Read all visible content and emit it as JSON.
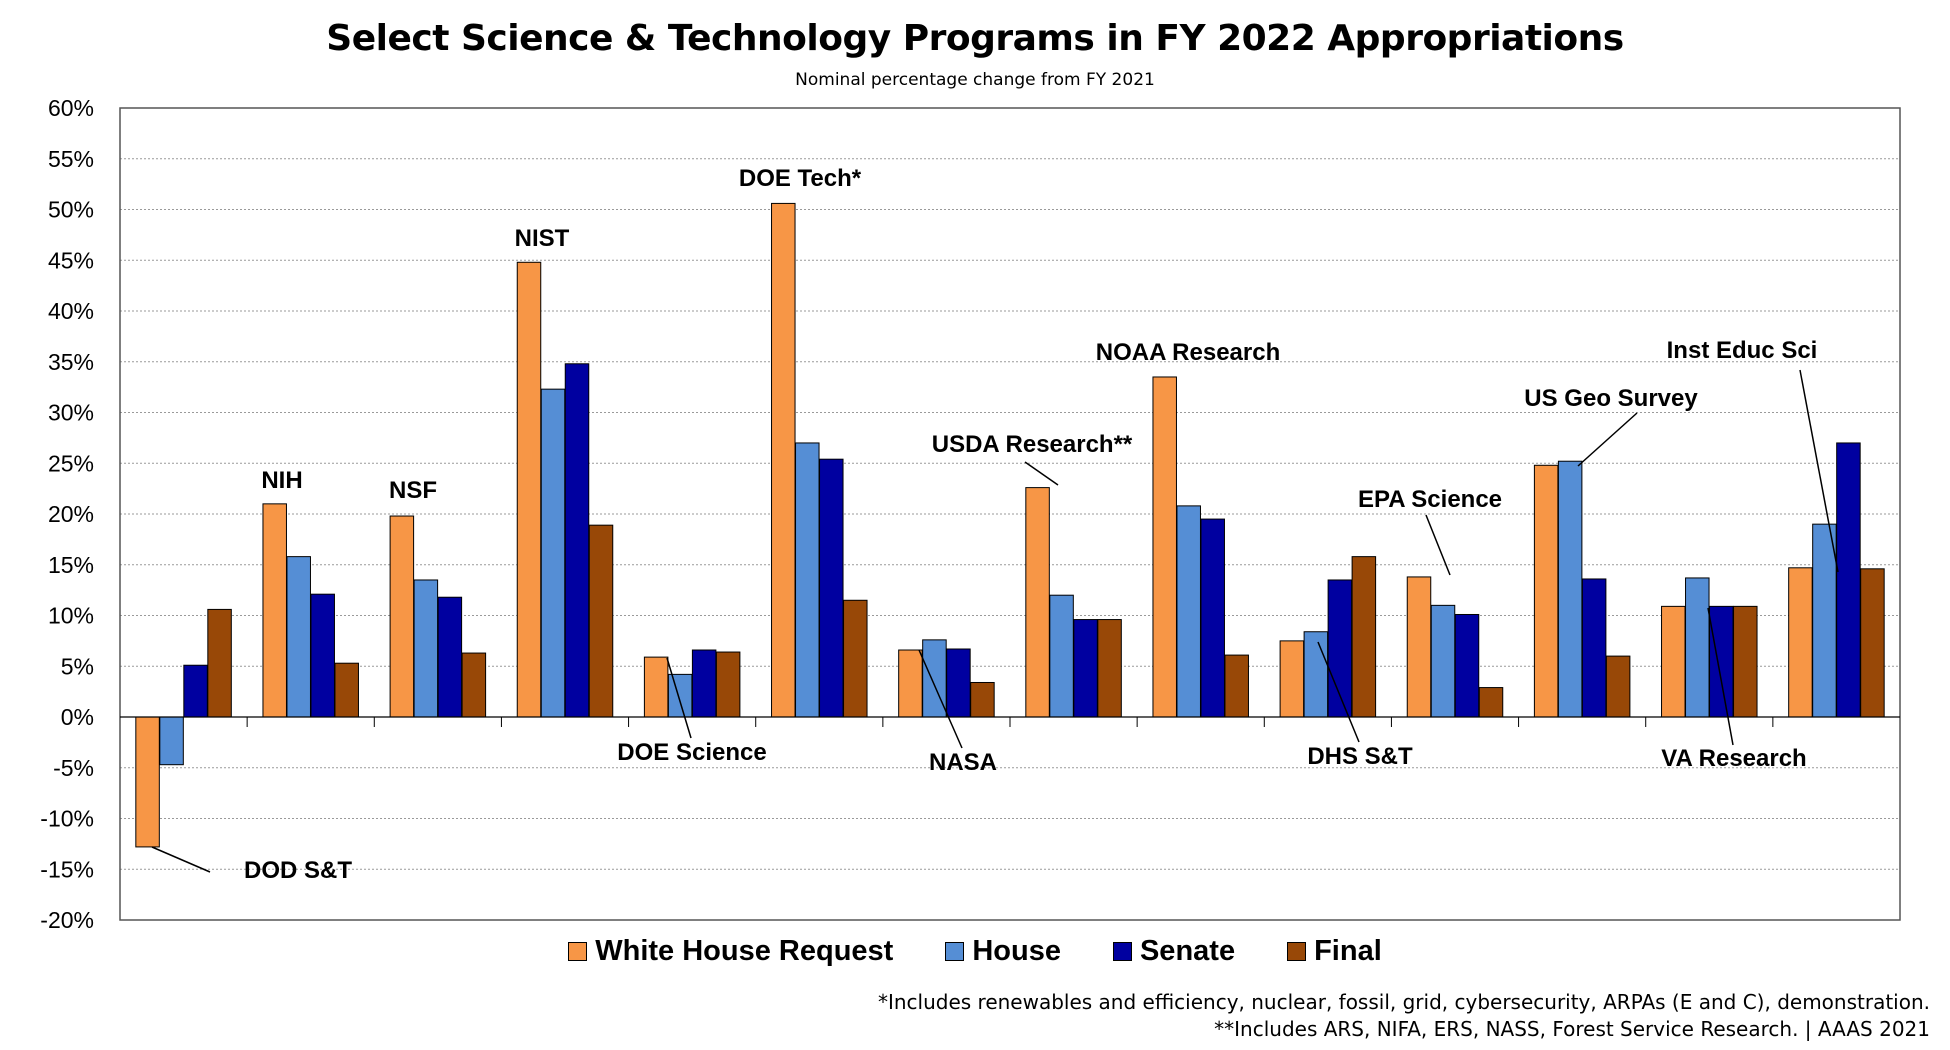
{
  "chart_data": {
    "type": "bar",
    "title": "Select Science & Technology Programs in FY 2022 Appropriations",
    "subtitle": "Nominal percentage change from FY 2021",
    "categories": [
      "DOD S&T",
      "NIH",
      "NSF",
      "NIST",
      "DOE Science",
      "DOE Tech*",
      "NASA",
      "USDA Research**",
      "NOAA Research",
      "DHS S&T",
      "EPA Science",
      "US Geo Survey",
      "VA Research",
      "Inst Educ Sci"
    ],
    "series": [
      {
        "name": "White House Request",
        "color": "#F79646",
        "values": [
          -12.8,
          21.0,
          19.8,
          44.8,
          5.9,
          50.6,
          6.6,
          22.6,
          33.5,
          7.5,
          13.8,
          24.8,
          10.9,
          14.7
        ]
      },
      {
        "name": "House",
        "color": "#558ED5",
        "values": [
          -4.7,
          15.8,
          13.5,
          32.3,
          4.2,
          27.0,
          7.6,
          12.0,
          20.8,
          8.4,
          11.0,
          25.2,
          13.7,
          19.0
        ]
      },
      {
        "name": "Senate",
        "color": "#0000A0",
        "values": [
          5.1,
          12.1,
          11.8,
          34.8,
          6.6,
          25.4,
          6.7,
          9.6,
          19.5,
          13.5,
          10.1,
          13.6,
          10.9,
          27.0
        ]
      },
      {
        "name": "Final",
        "color": "#984807",
        "values": [
          10.6,
          5.3,
          6.3,
          18.9,
          6.4,
          11.5,
          3.4,
          9.6,
          6.1,
          15.8,
          2.9,
          6.0,
          10.9,
          14.6
        ]
      }
    ],
    "ylim": [
      -20,
      60
    ],
    "y_tick_step": 5,
    "y_tick_labels": [
      "60%",
      "55%",
      "50%",
      "45%",
      "40%",
      "35%",
      "30%",
      "25%",
      "20%",
      "15%",
      "10%",
      "5%",
      "0%",
      "-5%",
      "-10%",
      "-15%",
      "-20%"
    ],
    "grid": "horizontal-dashed",
    "legend_position": "bottom",
    "xlabel": "",
    "ylabel": ""
  },
  "footnotes": [
    "*Includes renewables and efficiency, nuclear, fossil, grid, cybersecurity, ARPAs (E and C), demonstration.",
    "**Includes ARS, NIFA, ERS, NASS, Forest Service Research. | AAAS 2021"
  ]
}
